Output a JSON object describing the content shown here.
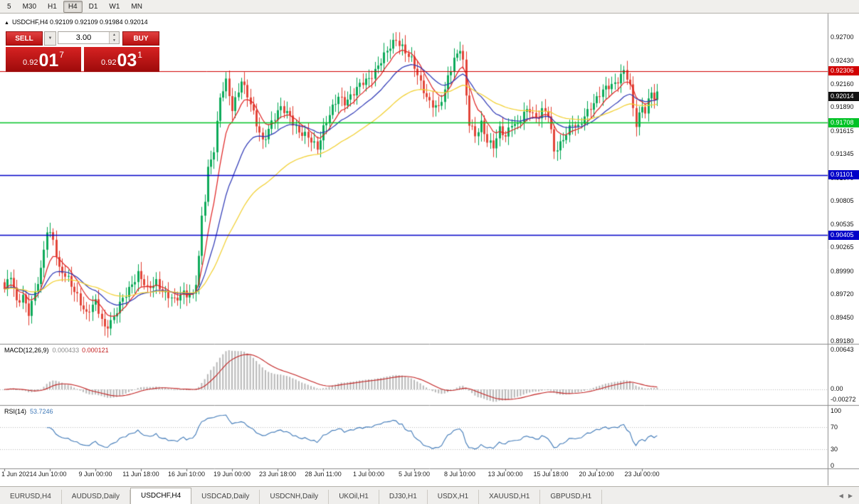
{
  "toolbar": {
    "items": [
      "5",
      "M30",
      "H1",
      "H4",
      "D1",
      "W1",
      "MN"
    ],
    "active": "H4"
  },
  "chart_header": {
    "title": "USDCHF,H4",
    "ohlc": "0.92109 0.92109 0.91984 0.92014"
  },
  "one_click": {
    "sell_label": "SELL",
    "buy_label": "BUY",
    "volume": "3.00",
    "sell_price": {
      "prefix": "0.92",
      "big": "01",
      "sup": "7"
    },
    "buy_price": {
      "prefix": "0.92",
      "big": "03",
      "sup": "1"
    }
  },
  "icons": {
    "collapse_triangle": "▲",
    "chevron_down": "▼",
    "spin_up": "▲",
    "spin_down": "▼",
    "tab_scroll_left": "◀",
    "tab_scroll_right": "▶"
  },
  "chart_data": {
    "type": "candlestick",
    "symbol": "USDCHF",
    "timeframe": "H4",
    "ohlc_display": {
      "open": "0.92109",
      "high": "0.92109",
      "low": "0.91984",
      "close": "0.92014"
    },
    "candle_count": 216,
    "price_path_anchors": [
      [
        0,
        0.8978
      ],
      [
        2,
        0.8992
      ],
      [
        4,
        0.8962
      ],
      [
        6,
        0.8972
      ],
      [
        8,
        0.8952
      ],
      [
        10,
        0.8972
      ],
      [
        12,
        0.8998
      ],
      [
        14,
        0.9048
      ],
      [
        16,
        0.9038
      ],
      [
        18,
        0.9
      ],
      [
        21,
        0.8988
      ],
      [
        24,
        0.8972
      ],
      [
        27,
        0.8948
      ],
      [
        30,
        0.8962
      ],
      [
        33,
        0.8935
      ],
      [
        36,
        0.8944
      ],
      [
        39,
        0.8966
      ],
      [
        42,
        0.8986
      ],
      [
        44,
        0.8996
      ],
      [
        47,
        0.8976
      ],
      [
        50,
        0.8988
      ],
      [
        53,
        0.8972
      ],
      [
        56,
        0.8963
      ],
      [
        59,
        0.8976
      ],
      [
        62,
        0.8971
      ],
      [
        63,
        0.8985
      ],
      [
        64,
        0.9012
      ],
      [
        65,
        0.906
      ],
      [
        66,
        0.9082
      ],
      [
        67,
        0.9118
      ],
      [
        69,
        0.9142
      ],
      [
        71,
        0.92
      ],
      [
        73,
        0.9216
      ],
      [
        75,
        0.9186
      ],
      [
        77,
        0.921
      ],
      [
        78,
        0.9222
      ],
      [
        80,
        0.9202
      ],
      [
        83,
        0.9168
      ],
      [
        85,
        0.915
      ],
      [
        88,
        0.9172
      ],
      [
        91,
        0.9186
      ],
      [
        94,
        0.918
      ],
      [
        97,
        0.916
      ],
      [
        100,
        0.9152
      ],
      [
        103,
        0.9143
      ],
      [
        105,
        0.9166
      ],
      [
        108,
        0.9186
      ],
      [
        110,
        0.92
      ],
      [
        112,
        0.9196
      ],
      [
        115,
        0.9206
      ],
      [
        118,
        0.9216
      ],
      [
        120,
        0.9222
      ],
      [
        123,
        0.9238
      ],
      [
        126,
        0.9252
      ],
      [
        129,
        0.9268
      ],
      [
        131,
        0.926
      ],
      [
        134,
        0.9242
      ],
      [
        137,
        0.9216
      ],
      [
        140,
        0.9196
      ],
      [
        143,
        0.9186
      ],
      [
        145,
        0.9206
      ],
      [
        146,
        0.9224
      ],
      [
        148,
        0.9246
      ],
      [
        150,
        0.9258
      ],
      [
        151,
        0.924
      ],
      [
        152,
        0.92
      ],
      [
        153,
        0.9168
      ],
      [
        155,
        0.9156
      ],
      [
        157,
        0.9172
      ],
      [
        159,
        0.915
      ],
      [
        161,
        0.9141
      ],
      [
        163,
        0.9162
      ],
      [
        165,
        0.9157
      ],
      [
        167,
        0.9172
      ],
      [
        169,
        0.9166
      ],
      [
        171,
        0.918
      ],
      [
        173,
        0.9187
      ],
      [
        175,
        0.9177
      ],
      [
        177,
        0.9185
      ],
      [
        179,
        0.9179
      ],
      [
        180,
        0.9158
      ],
      [
        181,
        0.9137
      ],
      [
        183,
        0.9148
      ],
      [
        185,
        0.916
      ],
      [
        187,
        0.9168
      ],
      [
        189,
        0.9163
      ],
      [
        191,
        0.918
      ],
      [
        193,
        0.9191
      ],
      [
        195,
        0.9198
      ],
      [
        197,
        0.9206
      ],
      [
        199,
        0.9213
      ],
      [
        201,
        0.9218
      ],
      [
        203,
        0.9226
      ],
      [
        204,
        0.923
      ],
      [
        205,
        0.9222
      ],
      [
        206,
        0.921
      ],
      [
        207,
        0.9186
      ],
      [
        208,
        0.9169
      ],
      [
        209,
        0.9181
      ],
      [
        210,
        0.9192
      ],
      [
        211,
        0.9186
      ],
      [
        212,
        0.9196
      ],
      [
        213,
        0.9206
      ],
      [
        214,
        0.9197
      ],
      [
        215,
        0.9201
      ]
    ],
    "texture": {
      "wiggle_amp": 0.0006,
      "wick_amp": 0.0007
    },
    "moving_averages": [
      {
        "name": "fast-ma",
        "period": 8,
        "color": "#e02020"
      },
      {
        "name": "mid-ma",
        "period": 20,
        "color": "#2b35b5"
      },
      {
        "name": "slow-ma",
        "period": 45,
        "color": "#f2cf2a"
      }
    ],
    "horizontal_levels": [
      {
        "label": "0.92306",
        "price": 0.92306,
        "color": "#d10000",
        "text_color": "#ffffff",
        "line": true,
        "width": 1
      },
      {
        "label": "0.91708",
        "price": 0.91708,
        "color": "#00c226",
        "text_color": "#ffffff",
        "line": true,
        "width": 1.6
      },
      {
        "label": "0.91101",
        "price": 0.91101,
        "color": "#0000c8",
        "text_color": "#ffffff",
        "line": true,
        "width": 1.6
      },
      {
        "label": "0.90405",
        "price": 0.90405,
        "color": "#0000c8",
        "text_color": "#ffffff",
        "line": true,
        "width": 1.6
      },
      {
        "label": "0.92014",
        "price": 0.92014,
        "color": "#111111",
        "text_color": "#ffffff",
        "line": false,
        "width": 1
      }
    ],
    "y_axis": {
      "ticks": [
        "0.92700",
        "0.92430",
        "0.92160",
        "0.91890",
        "0.91615",
        "0.91345",
        "0.91070",
        "0.90805",
        "0.90535",
        "0.90265",
        "0.89990",
        "0.89720",
        "0.89450",
        "0.89180"
      ]
    },
    "x_axis": {
      "labels": [
        "1 Jun 2021",
        "4 Jun 10:00",
        "9 Jun 00:00",
        "11 Jun 18:00",
        "16 Jun 10:00",
        "19 Jun 00:00",
        "23 Jun 18:00",
        "28 Jun 11:00",
        "1 Jul 00:00",
        "5 Jul 19:00",
        "8 Jul 10:00",
        "13 Jul 00:00",
        "15 Jul 18:00",
        "20 Jul 10:00",
        "23 Jul 00:00"
      ],
      "candles_per_label": 15
    },
    "colors": {
      "up": "#00a651",
      "down": "#e23b2e",
      "background": "#ffffff"
    },
    "indicators": {
      "macd": {
        "title": "MACD(12,26,9)",
        "value_main": "0.000433",
        "value_signal": "0.000121",
        "axis_labels": [
          "0.00643",
          "0.00",
          "-0.00272"
        ],
        "histogram_color": "#b8b8b8",
        "signal_color": "#c22020"
      },
      "rsi": {
        "title": "RSI(14)",
        "period": 14,
        "value": "53.7246",
        "axis_labels": [
          "100",
          "70",
          "30",
          "0"
        ],
        "levels": [
          70,
          30
        ],
        "line_color": "#3f79b8"
      }
    }
  },
  "tabs": {
    "items": [
      "EURUSD,H4",
      "AUDUSD,Daily",
      "USDCHF,H4",
      "USDCAD,Daily",
      "USDCNH,Daily",
      "UKOil,H1",
      "DJ30,H1",
      "USDX,H1",
      "XAUUSD,H1",
      "GBPUSD,H1"
    ],
    "active": "USDCHF,H4"
  }
}
